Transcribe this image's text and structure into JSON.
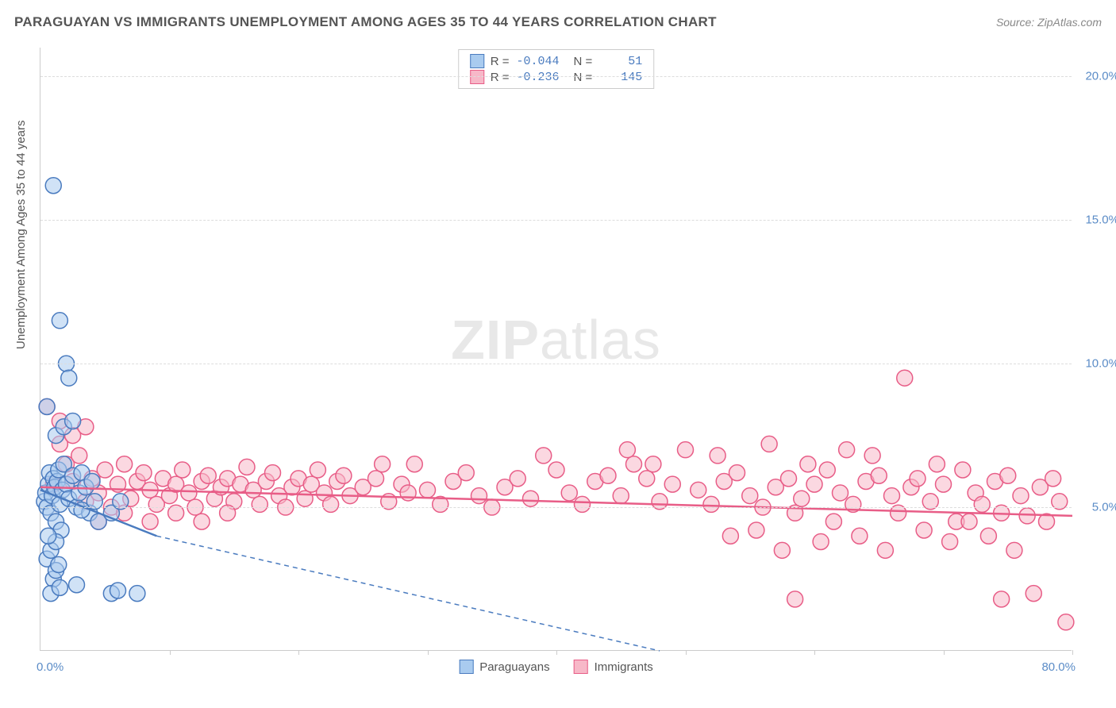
{
  "title": "PARAGUAYAN VS IMMIGRANTS UNEMPLOYMENT AMONG AGES 35 TO 44 YEARS CORRELATION CHART",
  "source": "Source: ZipAtlas.com",
  "ylabel": "Unemployment Among Ages 35 to 44 years",
  "watermark_zip": "ZIP",
  "watermark_atlas": "atlas",
  "xlim": [
    0,
    80
  ],
  "ylim": [
    0,
    21
  ],
  "xtick_start": "0.0%",
  "xtick_end": "80.0%",
  "xtick_positions": [
    0,
    10,
    20,
    30,
    40,
    50,
    60,
    70,
    80
  ],
  "ytick_labels": [
    "5.0%",
    "10.0%",
    "15.0%",
    "20.0%"
  ],
  "ytick_values": [
    5,
    10,
    15,
    20
  ],
  "grid_color": "#dddddd",
  "axis_color": "#cccccc",
  "plot_bg": "#ffffff",
  "series": {
    "paraguayans": {
      "label": "Paraguayans",
      "color_fill": "#a9cbef",
      "color_stroke": "#4a7bbf",
      "r_value": "-0.044",
      "n_value": "51",
      "marker_r": 10,
      "fill_opacity": 0.55,
      "regression": {
        "x1": 0,
        "y1": 5.6,
        "x2": 9,
        "y2": 4.0
      },
      "regression_ext": {
        "x1": 9,
        "y1": 4.0,
        "x2": 48,
        "y2": 0
      },
      "points": [
        [
          0.3,
          5.2
        ],
        [
          0.4,
          5.5
        ],
        [
          0.5,
          5.0
        ],
        [
          0.6,
          5.8
        ],
        [
          0.7,
          6.2
        ],
        [
          0.8,
          4.8
        ],
        [
          0.9,
          5.4
        ],
        [
          1.0,
          6.0
        ],
        [
          1.1,
          5.7
        ],
        [
          1.2,
          4.5
        ],
        [
          1.3,
          5.9
        ],
        [
          1.4,
          6.3
        ],
        [
          1.5,
          5.1
        ],
        [
          1.6,
          4.2
        ],
        [
          1.7,
          5.6
        ],
        [
          1.8,
          6.5
        ],
        [
          0.5,
          3.2
        ],
        [
          0.8,
          3.5
        ],
        [
          1.0,
          2.5
        ],
        [
          1.2,
          2.8
        ],
        [
          1.4,
          3.0
        ],
        [
          2.0,
          5.8
        ],
        [
          2.2,
          5.3
        ],
        [
          2.5,
          6.1
        ],
        [
          2.8,
          5.0
        ],
        [
          3.0,
          5.5
        ],
        [
          3.2,
          6.2
        ],
        [
          3.5,
          5.7
        ],
        [
          3.8,
          4.8
        ],
        [
          4.0,
          5.9
        ],
        [
          4.2,
          5.2
        ],
        [
          4.5,
          4.5
        ],
        [
          0.8,
          2.0
        ],
        [
          1.5,
          2.2
        ],
        [
          2.8,
          2.3
        ],
        [
          3.2,
          4.9
        ],
        [
          5.5,
          2.0
        ],
        [
          6.0,
          2.1
        ],
        [
          7.5,
          2.0
        ],
        [
          1.2,
          7.5
        ],
        [
          1.8,
          7.8
        ],
        [
          2.0,
          10.0
        ],
        [
          1.5,
          11.5
        ],
        [
          2.2,
          9.5
        ],
        [
          2.5,
          8.0
        ],
        [
          1.0,
          16.2
        ],
        [
          1.2,
          3.8
        ],
        [
          0.6,
          4.0
        ],
        [
          5.5,
          4.8
        ],
        [
          6.2,
          5.2
        ],
        [
          0.5,
          8.5
        ]
      ]
    },
    "immigrants": {
      "label": "Immigrants",
      "color_fill": "#f7b8c8",
      "color_stroke": "#e85d87",
      "r_value": "-0.236",
      "n_value": "145",
      "marker_r": 10,
      "fill_opacity": 0.55,
      "regression": {
        "x1": 0,
        "y1": 5.7,
        "x2": 80,
        "y2": 4.7
      },
      "points": [
        [
          0.5,
          8.5
        ],
        [
          1.0,
          5.8
        ],
        [
          1.5,
          7.2
        ],
        [
          2.0,
          6.5
        ],
        [
          2.5,
          5.9
        ],
        [
          3.0,
          6.8
        ],
        [
          3.5,
          5.2
        ],
        [
          4.0,
          6.0
        ],
        [
          4.5,
          5.5
        ],
        [
          5.0,
          6.3
        ],
        [
          5.5,
          5.0
        ],
        [
          6.0,
          5.8
        ],
        [
          6.5,
          6.5
        ],
        [
          7.0,
          5.3
        ],
        [
          7.5,
          5.9
        ],
        [
          8.0,
          6.2
        ],
        [
          8.5,
          5.6
        ],
        [
          9.0,
          5.1
        ],
        [
          9.5,
          6.0
        ],
        [
          10.0,
          5.4
        ],
        [
          10.5,
          5.8
        ],
        [
          11.0,
          6.3
        ],
        [
          11.5,
          5.5
        ],
        [
          12.0,
          5.0
        ],
        [
          12.5,
          5.9
        ],
        [
          13.0,
          6.1
        ],
        [
          13.5,
          5.3
        ],
        [
          14.0,
          5.7
        ],
        [
          14.5,
          6.0
        ],
        [
          15.0,
          5.2
        ],
        [
          15.5,
          5.8
        ],
        [
          16.0,
          6.4
        ],
        [
          16.5,
          5.6
        ],
        [
          17.0,
          5.1
        ],
        [
          17.5,
          5.9
        ],
        [
          18.0,
          6.2
        ],
        [
          18.5,
          5.4
        ],
        [
          19.0,
          5.0
        ],
        [
          19.5,
          5.7
        ],
        [
          20.0,
          6.0
        ],
        [
          20.5,
          5.3
        ],
        [
          21.0,
          5.8
        ],
        [
          21.5,
          6.3
        ],
        [
          22.0,
          5.5
        ],
        [
          22.5,
          5.1
        ],
        [
          23.0,
          5.9
        ],
        [
          23.5,
          6.1
        ],
        [
          24.0,
          5.4
        ],
        [
          25.0,
          5.7
        ],
        [
          26.0,
          6.0
        ],
        [
          27.0,
          5.2
        ],
        [
          28.0,
          5.8
        ],
        [
          29.0,
          6.5
        ],
        [
          30.0,
          5.6
        ],
        [
          31.0,
          5.1
        ],
        [
          32.0,
          5.9
        ],
        [
          33.0,
          6.2
        ],
        [
          34.0,
          5.4
        ],
        [
          35.0,
          5.0
        ],
        [
          36.0,
          5.7
        ],
        [
          37.0,
          6.0
        ],
        [
          38.0,
          5.3
        ],
        [
          39.0,
          6.8
        ],
        [
          40.0,
          6.3
        ],
        [
          41.0,
          5.5
        ],
        [
          42.0,
          5.1
        ],
        [
          43.0,
          5.9
        ],
        [
          44.0,
          6.1
        ],
        [
          45.0,
          5.4
        ],
        [
          46.0,
          6.5
        ],
        [
          47.0,
          6.0
        ],
        [
          48.0,
          5.2
        ],
        [
          49.0,
          5.8
        ],
        [
          50.0,
          7.0
        ],
        [
          51.0,
          5.6
        ],
        [
          52.0,
          5.1
        ],
        [
          52.5,
          6.8
        ],
        [
          53.0,
          5.9
        ],
        [
          53.5,
          4.0
        ],
        [
          54.0,
          6.2
        ],
        [
          55.0,
          5.4
        ],
        [
          55.5,
          4.2
        ],
        [
          56.0,
          5.0
        ],
        [
          56.5,
          7.2
        ],
        [
          57.0,
          5.7
        ],
        [
          57.5,
          3.5
        ],
        [
          58.0,
          6.0
        ],
        [
          58.5,
          4.8
        ],
        [
          59.0,
          5.3
        ],
        [
          59.5,
          6.5
        ],
        [
          60.0,
          5.8
        ],
        [
          60.5,
          3.8
        ],
        [
          61.0,
          6.3
        ],
        [
          61.5,
          4.5
        ],
        [
          62.0,
          5.5
        ],
        [
          62.5,
          7.0
        ],
        [
          63.0,
          5.1
        ],
        [
          63.5,
          4.0
        ],
        [
          64.0,
          5.9
        ],
        [
          64.5,
          6.8
        ],
        [
          65.0,
          6.1
        ],
        [
          65.5,
          3.5
        ],
        [
          66.0,
          5.4
        ],
        [
          66.5,
          4.8
        ],
        [
          67.0,
          9.5
        ],
        [
          67.5,
          5.7
        ],
        [
          68.0,
          6.0
        ],
        [
          68.5,
          4.2
        ],
        [
          69.0,
          5.2
        ],
        [
          69.5,
          6.5
        ],
        [
          70.0,
          5.8
        ],
        [
          70.5,
          3.8
        ],
        [
          71.0,
          4.5
        ],
        [
          71.5,
          6.3
        ],
        [
          72.0,
          4.5
        ],
        [
          72.5,
          5.5
        ],
        [
          73.0,
          5.1
        ],
        [
          73.5,
          4.0
        ],
        [
          74.0,
          5.9
        ],
        [
          74.5,
          4.8
        ],
        [
          75.0,
          6.1
        ],
        [
          75.5,
          3.5
        ],
        [
          76.0,
          5.4
        ],
        [
          76.5,
          4.7
        ],
        [
          77.0,
          2.0
        ],
        [
          77.5,
          5.7
        ],
        [
          78.0,
          4.5
        ],
        [
          78.5,
          6.0
        ],
        [
          79.0,
          5.2
        ],
        [
          79.5,
          1.0
        ],
        [
          2.5,
          7.5
        ],
        [
          3.5,
          7.8
        ],
        [
          1.5,
          8.0
        ],
        [
          4.5,
          4.5
        ],
        [
          6.5,
          4.8
        ],
        [
          8.5,
          4.5
        ],
        [
          10.5,
          4.8
        ],
        [
          12.5,
          4.5
        ],
        [
          14.5,
          4.8
        ],
        [
          26.5,
          6.5
        ],
        [
          28.5,
          5.5
        ],
        [
          45.5,
          7.0
        ],
        [
          47.5,
          6.5
        ],
        [
          58.5,
          1.8
        ],
        [
          74.5,
          1.8
        ]
      ]
    }
  },
  "stats_legend": {
    "r_label": "R =",
    "n_label": "N ="
  }
}
